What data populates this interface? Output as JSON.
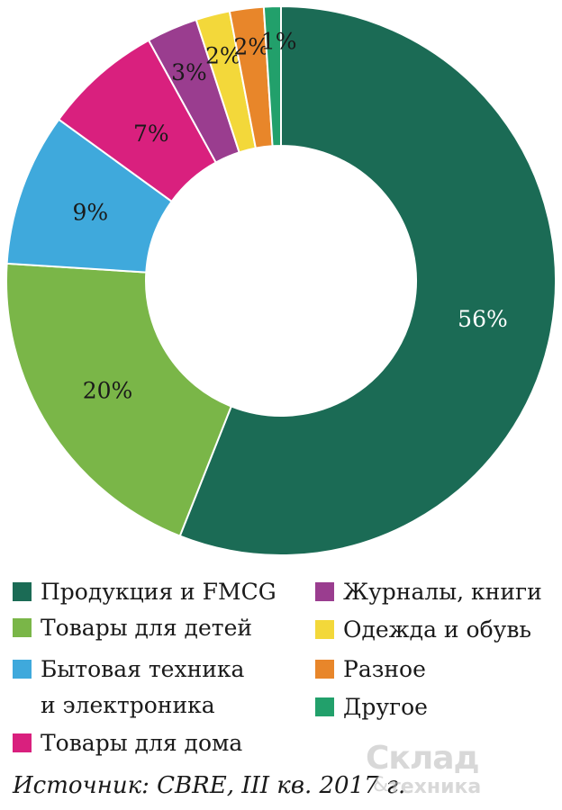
{
  "chart_data": {
    "type": "pie",
    "donut": true,
    "categories": [
      "Продукция и FMCG",
      "Товары для детей",
      "Бытовая техника и электроника",
      "Товары для дома",
      "Журналы, книги",
      "Одежда и обувь",
      "Разное",
      "Другое"
    ],
    "values": [
      56,
      20,
      9,
      7,
      3,
      2,
      2,
      1
    ],
    "value_labels": [
      "56%",
      "20%",
      "9%",
      "7%",
      "3%",
      "2%",
      "2%",
      "1%"
    ],
    "colors": [
      "#1b6b55",
      "#7ab648",
      "#3fa9dc",
      "#d9207e",
      "#9a3d8f",
      "#f3d83a",
      "#e8862a",
      "#22a06b"
    ],
    "label_colors": [
      "#ffffff",
      "#1a1a1a",
      "#1a1a1a",
      "#1a1a1a",
      "#1a1a1a",
      "#1a1a1a",
      "#1a1a1a",
      "#1a1a1a"
    ],
    "legend_placement": "bottom"
  },
  "legend": {
    "left": [
      {
        "lines": [
          "Продукция и FMCG"
        ],
        "color": "#1b6b55"
      },
      {
        "lines": [
          "Товары для детей"
        ],
        "color": "#7ab648"
      },
      {
        "lines": [
          "Бытовая техника",
          "и электроника"
        ],
        "color": "#3fa9dc"
      },
      {
        "lines": [
          "Товары для дома"
        ],
        "color": "#d9207e"
      }
    ],
    "right": [
      {
        "lines": [
          "Журналы, книги"
        ],
        "color": "#9a3d8f"
      },
      {
        "lines": [
          "Одежда и обувь"
        ],
        "color": "#f3d83a"
      },
      {
        "lines": [
          "Разное"
        ],
        "color": "#e8862a"
      },
      {
        "lines": [
          "Другое"
        ],
        "color": "#22a06b"
      }
    ]
  },
  "source": "Источник: CBRE, III кв. 2017 г.",
  "logo": {
    "line1": "Склад",
    "amp": "&",
    "line2": "техника"
  }
}
